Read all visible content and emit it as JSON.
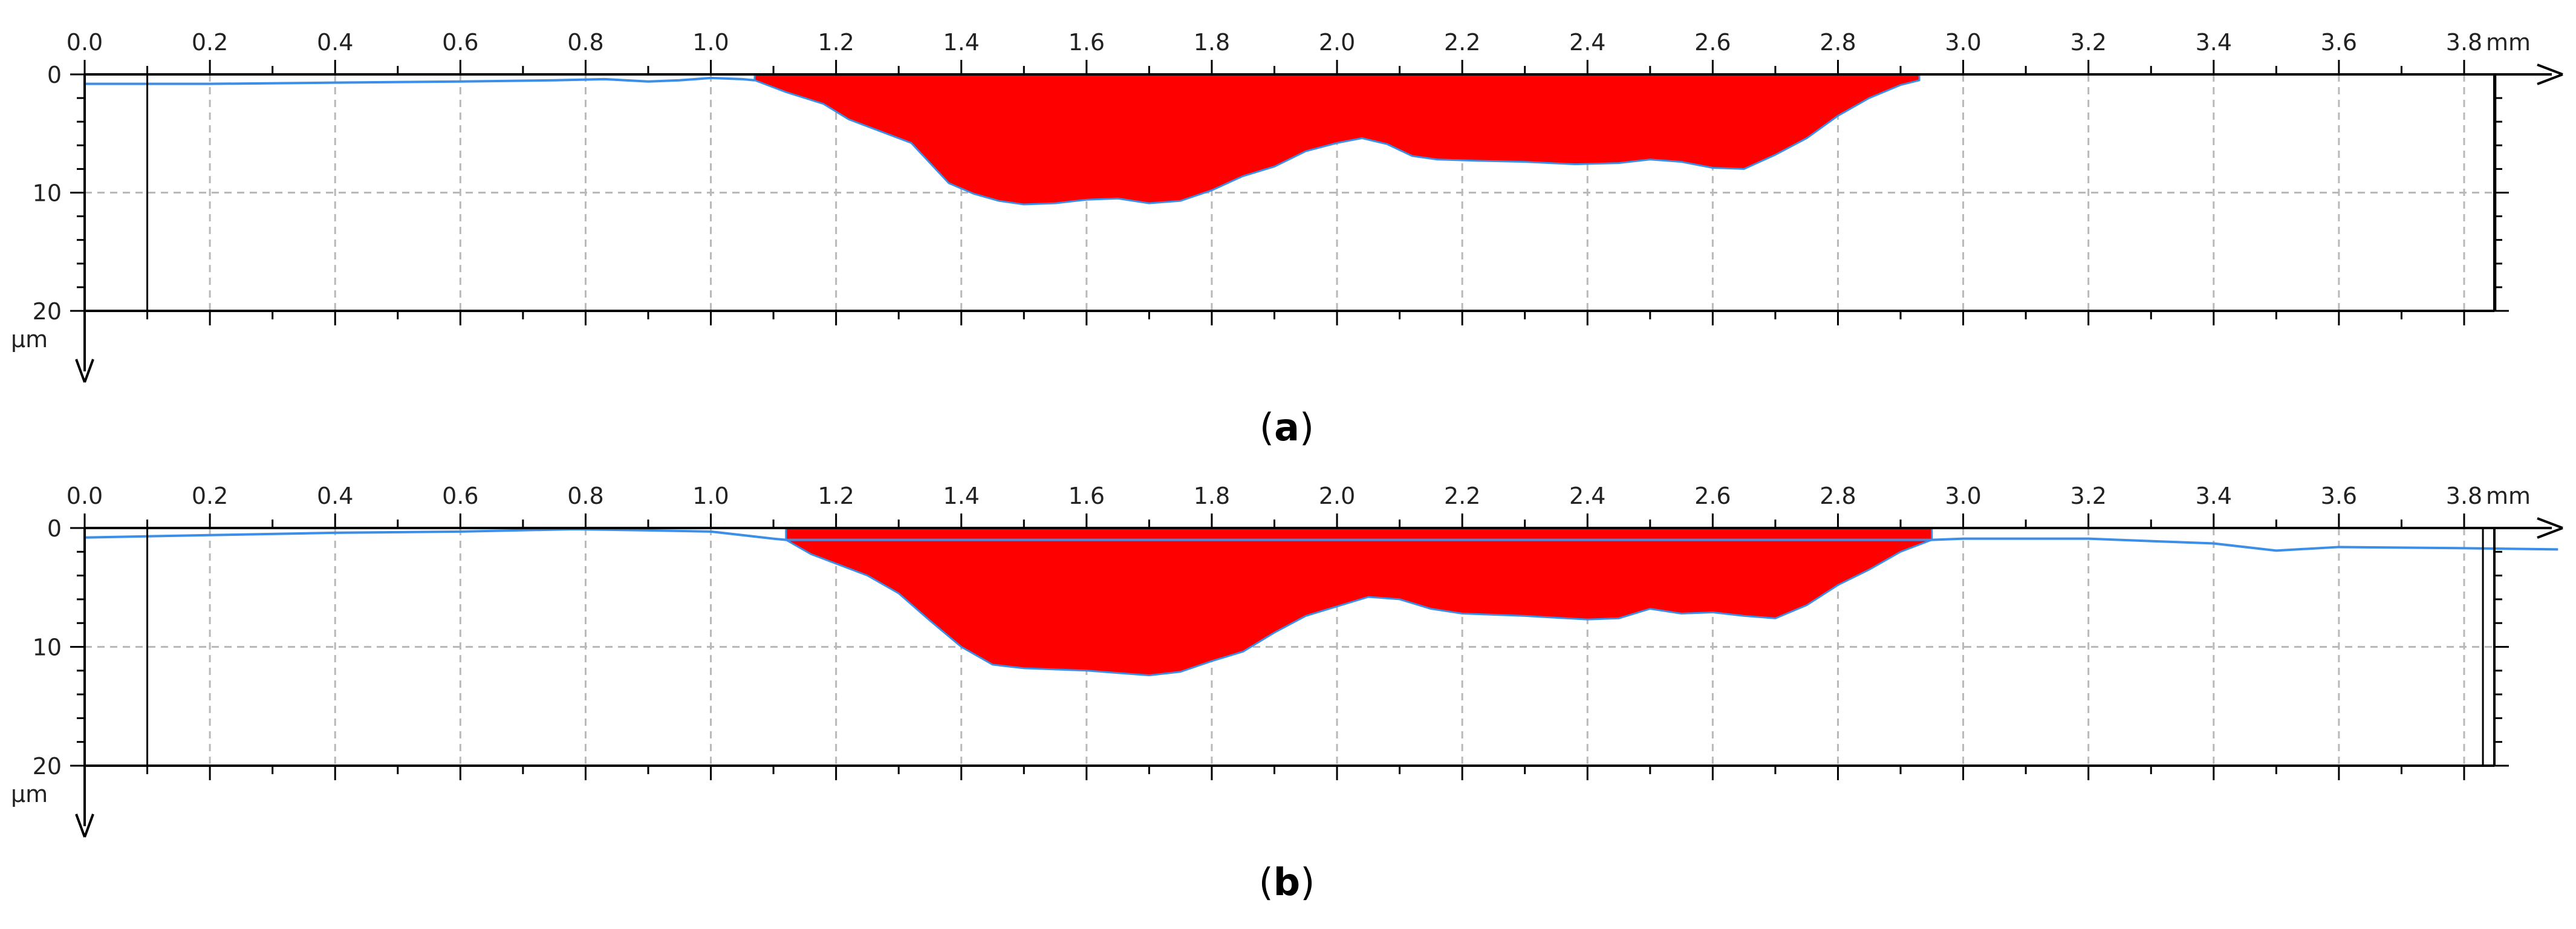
{
  "chart_data": [
    {
      "type": "area",
      "caption_letter": "a",
      "x_unit": "mm",
      "y_unit": "µm",
      "x_ticks": [
        "0.0",
        "0.2",
        "0.4",
        "0.6",
        "0.8",
        "1.0",
        "1.2",
        "1.4",
        "1.6",
        "1.8",
        "2.0",
        "2.2",
        "2.4",
        "2.6",
        "2.8",
        "3.0",
        "3.2",
        "3.4",
        "3.6",
        "3.8"
      ],
      "y_ticks": [
        "0",
        "10",
        "20"
      ],
      "xlim": [
        0,
        3.95
      ],
      "ylim": [
        0,
        20
      ],
      "y_inverted": true,
      "grid": true,
      "cursor_lines_mm": [
        0.1,
        3.85
      ],
      "profile": {
        "x": [
          0.0,
          0.2,
          0.4,
          0.6,
          0.75,
          0.83,
          0.9,
          0.95,
          1.0,
          1.05,
          1.07
        ],
        "y": [
          0.8,
          0.8,
          0.7,
          0.6,
          0.5,
          0.4,
          0.6,
          0.5,
          0.3,
          0.4,
          0.5
        ]
      },
      "filled_region": {
        "x": [
          1.07,
          1.12,
          1.18,
          1.22,
          1.27,
          1.32,
          1.35,
          1.38,
          1.42,
          1.46,
          1.5,
          1.55,
          1.6,
          1.65,
          1.7,
          1.75,
          1.8,
          1.85,
          1.9,
          1.95,
          2.0,
          2.04,
          2.08,
          2.12,
          2.16,
          2.22,
          2.3,
          2.38,
          2.45,
          2.5,
          2.55,
          2.6,
          2.65,
          2.7,
          2.75,
          2.8,
          2.85,
          2.9,
          2.93
        ],
        "y": [
          0.5,
          1.5,
          2.5,
          3.8,
          4.8,
          5.8,
          7.5,
          9.2,
          10.1,
          10.7,
          11.0,
          10.9,
          10.6,
          10.5,
          10.9,
          10.7,
          9.8,
          8.6,
          7.8,
          6.5,
          5.8,
          5.4,
          5.9,
          6.9,
          7.2,
          7.3,
          7.4,
          7.6,
          7.5,
          7.2,
          7.4,
          7.9,
          8.0,
          6.8,
          5.4,
          3.5,
          2.0,
          0.9,
          0.5
        ]
      }
    },
    {
      "type": "area",
      "caption_letter": "b",
      "x_unit": "mm",
      "y_unit": "µm",
      "x_ticks": [
        "0.0",
        "0.2",
        "0.4",
        "0.6",
        "0.8",
        "1.0",
        "1.2",
        "1.4",
        "1.6",
        "1.8",
        "2.0",
        "2.2",
        "2.4",
        "2.6",
        "2.8",
        "3.0",
        "3.2",
        "3.4",
        "3.6",
        "3.8"
      ],
      "y_ticks": [
        "0",
        "10",
        "20"
      ],
      "xlim": [
        0,
        3.95
      ],
      "ylim": [
        0,
        20
      ],
      "y_inverted": true,
      "grid": true,
      "cursor_lines_mm": [
        0.1,
        3.83
      ],
      "profile": {
        "x": [
          0.0,
          0.2,
          0.4,
          0.6,
          0.78,
          0.9,
          1.0,
          1.05,
          1.1,
          1.12,
          2.95,
          3.0,
          3.2,
          3.4,
          3.5,
          3.6,
          3.8,
          3.95
        ],
        "y": [
          0.8,
          0.6,
          0.4,
          0.3,
          0.1,
          0.2,
          0.3,
          0.6,
          0.9,
          1.0,
          1.0,
          0.9,
          0.9,
          1.3,
          1.9,
          1.6,
          1.7,
          1.8
        ]
      },
      "filled_region": {
        "x": [
          1.12,
          1.16,
          1.2,
          1.25,
          1.3,
          1.35,
          1.4,
          1.45,
          1.5,
          1.55,
          1.6,
          1.65,
          1.7,
          1.75,
          1.8,
          1.85,
          1.9,
          1.95,
          2.0,
          2.05,
          2.1,
          2.15,
          2.2,
          2.3,
          2.4,
          2.45,
          2.5,
          2.55,
          2.6,
          2.65,
          2.7,
          2.75,
          2.8,
          2.85,
          2.9,
          2.95
        ],
        "y": [
          1.0,
          2.2,
          3.0,
          4.0,
          5.5,
          7.8,
          10.0,
          11.5,
          11.8,
          11.9,
          12.0,
          12.2,
          12.4,
          12.1,
          11.2,
          10.4,
          8.8,
          7.4,
          6.6,
          5.8,
          6.0,
          6.8,
          7.2,
          7.4,
          7.7,
          7.6,
          6.8,
          7.2,
          7.1,
          7.4,
          7.6,
          6.5,
          4.8,
          3.5,
          2.0,
          1.0
        ]
      }
    }
  ]
}
